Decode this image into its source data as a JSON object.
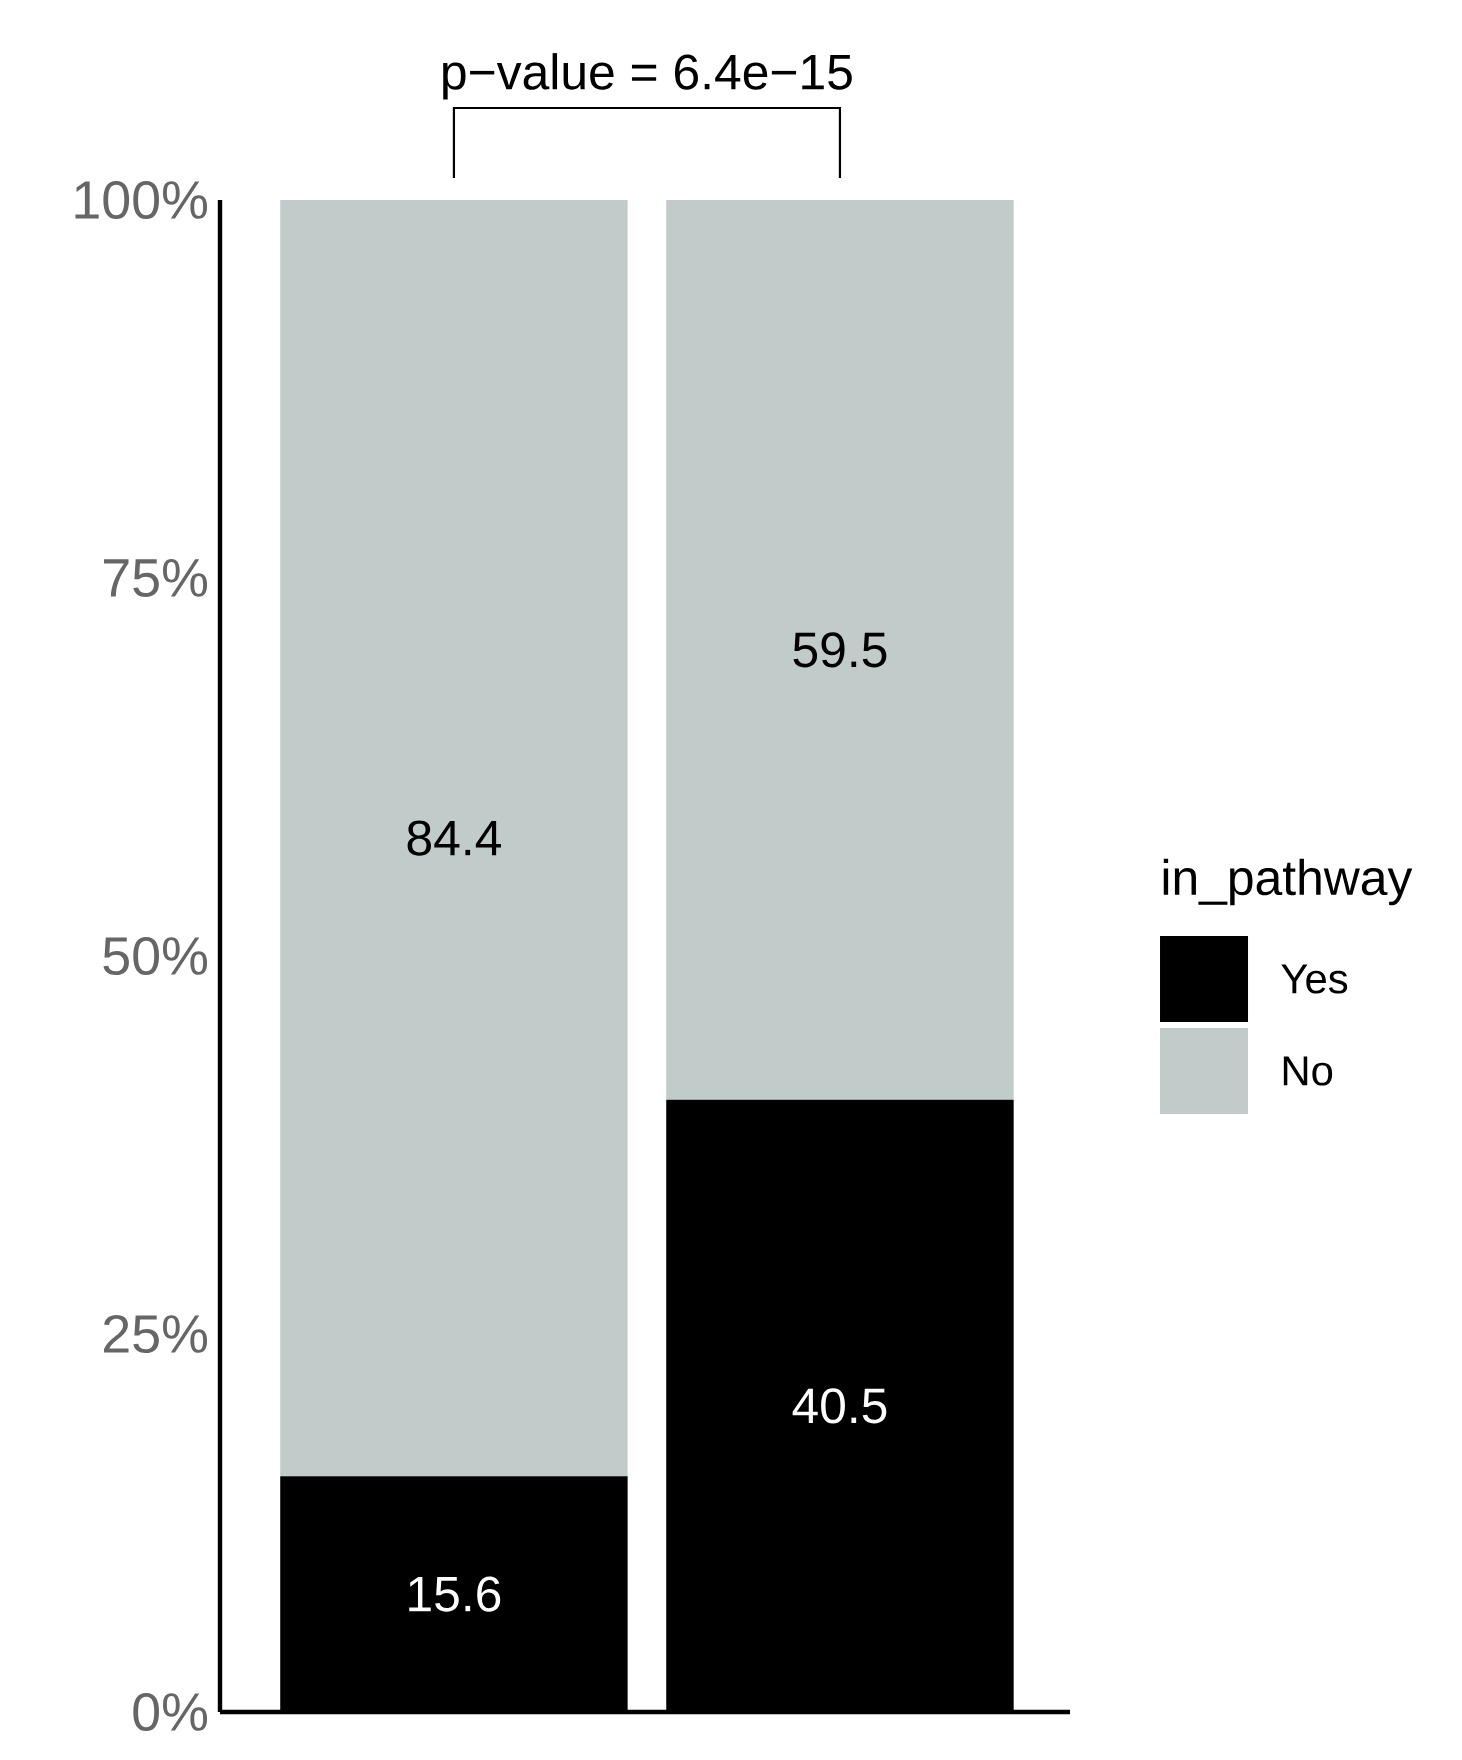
{
  "chart_data": {
    "type": "bar",
    "stacked": true,
    "categories": [
      null,
      null
    ],
    "series": [
      {
        "name": "Yes",
        "color": "#000000",
        "values": [
          15.6,
          40.5
        ]
      },
      {
        "name": "No",
        "color": "#c1cbc9",
        "values": [
          84.4,
          59.5
        ]
      }
    ],
    "ylim": [
      0,
      100
    ],
    "yticks": [
      {
        "value": 0,
        "label": "0%"
      },
      {
        "value": 25,
        "label": "25%"
      },
      {
        "value": 50,
        "label": "50%"
      },
      {
        "value": 75,
        "label": "75%"
      },
      {
        "value": 100,
        "label": "100%"
      }
    ],
    "data_labels": true,
    "legend": "right",
    "legend_title": "in_pathway",
    "grid": false,
    "annotations": [
      "p−value = 6.4e−15"
    ]
  }
}
